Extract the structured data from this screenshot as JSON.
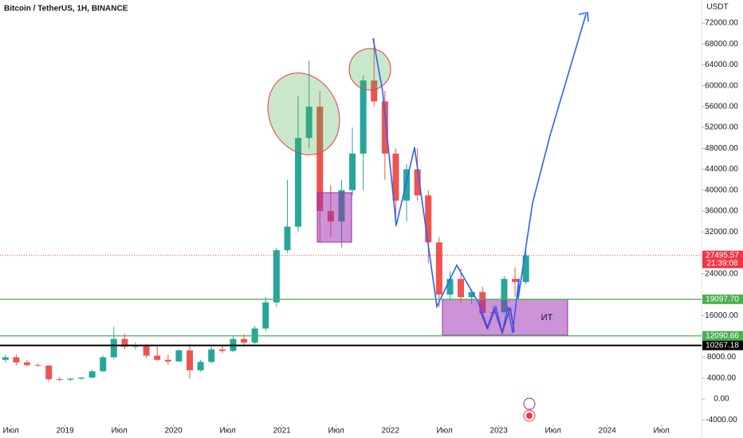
{
  "chart_data": {
    "type": "candlestick",
    "title": "Bitcoin / TetherUS, 1H, BINANCE",
    "y_axis_label": "USDT",
    "x": [
      2018.45,
      2018.55,
      2018.65,
      2018.75,
      2018.85,
      2018.95,
      2019.05,
      2019.15,
      2019.25,
      2019.35,
      2019.45,
      2019.55,
      2019.65,
      2019.75,
      2019.85,
      2019.95,
      2020.05,
      2020.15,
      2020.25,
      2020.35,
      2020.45,
      2020.55,
      2020.65,
      2020.75,
      2020.85,
      2020.95,
      2021.05,
      2021.15,
      2021.25,
      2021.35,
      2021.45,
      2021.55,
      2021.65,
      2021.75,
      2021.85,
      2021.95,
      2022.05,
      2022.15,
      2022.25,
      2022.35,
      2022.45,
      2022.55,
      2022.65,
      2022.75,
      2022.85,
      2022.95,
      2023.05,
      2023.15,
      2023.25
    ],
    "open": [
      7500,
      8000,
      7000,
      6500,
      6400,
      3800,
      3700,
      3900,
      4100,
      5300,
      8000,
      11500,
      10000,
      10300,
      8300,
      7500,
      7200,
      9300,
      5500,
      7100,
      9500,
      9200,
      11500,
      10800,
      13500,
      18500,
      28500,
      33000,
      50000,
      56000,
      36000,
      34000,
      40000,
      47000,
      61000,
      57000,
      47000,
      38000,
      44000,
      39000,
      30000,
      20000,
      23000,
      19500,
      20500,
      16500,
      16600,
      23000,
      22400
    ],
    "high": [
      8500,
      8500,
      7500,
      6800,
      6500,
      4200,
      4000,
      4200,
      5600,
      8300,
      13800,
      12500,
      10800,
      10500,
      10300,
      8500,
      9500,
      10500,
      7500,
      10000,
      10400,
      12000,
      12400,
      14000,
      19500,
      29000,
      42000,
      58000,
      64800,
      59000,
      41000,
      42000,
      52000,
      62000,
      69000,
      59000,
      48000,
      45000,
      48000,
      40000,
      31000,
      24500,
      25000,
      21000,
      21500,
      18000,
      23500,
      25200,
      29000
    ],
    "low": [
      7000,
      6500,
      6200,
      6200,
      3300,
      3400,
      3400,
      3700,
      4000,
      5200,
      7600,
      9500,
      9500,
      7800,
      7300,
      6500,
      7100,
      3900,
      5200,
      6800,
      8800,
      9000,
      10000,
      10500,
      13000,
      17600,
      28000,
      32000,
      48000,
      30000,
      31000,
      29000,
      39000,
      40000,
      56000,
      42000,
      33000,
      34000,
      38000,
      26000,
      17600,
      18800,
      18500,
      18200,
      15500,
      16300,
      16500,
      19600,
      22000
    ],
    "close": [
      8000,
      7000,
      6500,
      6400,
      3800,
      3700,
      3900,
      4100,
      5300,
      8000,
      11500,
      10000,
      10300,
      8300,
      7500,
      7200,
      9300,
      5500,
      7100,
      9500,
      9200,
      11500,
      10800,
      13500,
      18500,
      28500,
      33000,
      50000,
      56000,
      36000,
      34000,
      40000,
      47000,
      61000,
      57000,
      47000,
      38000,
      44000,
      39000,
      30000,
      20000,
      23000,
      19500,
      20500,
      16500,
      16600,
      23000,
      22400,
      27500
    ],
    "up_color": "#26a69a",
    "down_color": "#ef5350",
    "xlim": [
      2018.4,
      2024.87
    ],
    "ylim": [
      -4420,
      76420
    ],
    "xticks": [
      {
        "value": 2018.5,
        "label": "Июл"
      },
      2019,
      {
        "value": 2019.5,
        "label": "Июл"
      },
      2020,
      {
        "value": 2020.5,
        "label": "Июл"
      },
      2021,
      {
        "value": 2021.5,
        "label": "Июл"
      },
      2022,
      {
        "value": 2022.5,
        "label": "Июл"
      },
      2023,
      {
        "value": 2023.5,
        "label": "Июл"
      },
      2024,
      {
        "value": 2024.5,
        "label": "Июл"
      }
    ],
    "yticks": [
      {
        "value": -4000,
        "label": "-4000.00"
      },
      {
        "value": 0,
        "label": "0.00"
      },
      {
        "value": 4000,
        "label": "4000.00"
      },
      {
        "value": 8000,
        "label": "8000.00"
      },
      {
        "value": 16000,
        "label": "16000.00"
      },
      {
        "value": 24000,
        "label": "24000.00"
      },
      {
        "value": 32000,
        "label": "32000.00"
      },
      {
        "value": 36000,
        "label": "36000.00"
      },
      {
        "value": 40000,
        "label": "40000.00"
      },
      {
        "value": 44000,
        "label": "44000.00"
      },
      {
        "value": 48000,
        "label": "48000.00"
      },
      {
        "value": 52000,
        "label": "52000.00"
      },
      {
        "value": 56000,
        "label": "56000.00"
      },
      {
        "value": 60000,
        "label": "60000.00"
      },
      {
        "value": 64000,
        "label": "64000.00"
      },
      {
        "value": 68000,
        "label": "68000.00"
      },
      {
        "value": 72000,
        "label": "72000.00"
      }
    ],
    "last_price": 27495.57,
    "last_price_color": "#f23645",
    "countdown": "21:39:08",
    "levels": [
      {
        "value": 19097.7,
        "label": "19097.70",
        "color": "#4caf50"
      },
      {
        "value": 12090.66,
        "label": "12090.66",
        "color": "#4caf50"
      },
      {
        "value": 10267.18,
        "label": "10267.18",
        "color": "#000000"
      }
    ],
    "annotation_text": "ИТ"
  }
}
